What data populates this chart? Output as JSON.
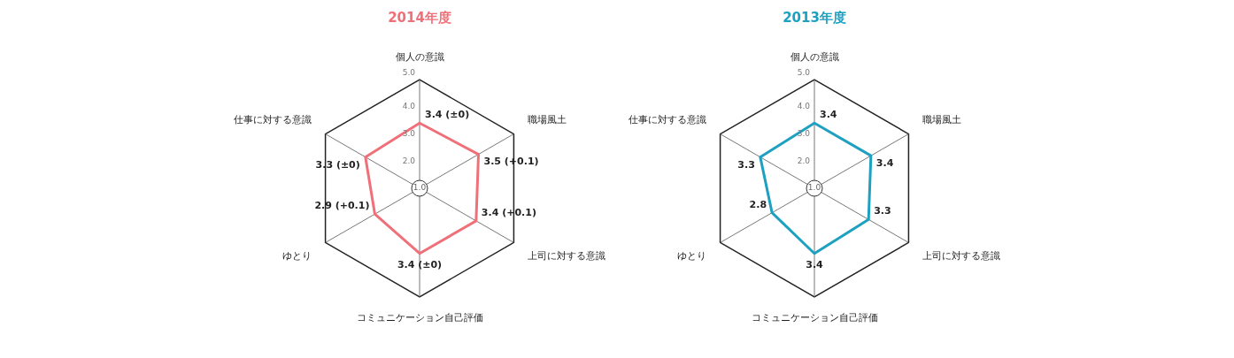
{
  "chart_data": [
    {
      "type": "radar",
      "title": "2014年度",
      "categories": [
        "個人の意識",
        "職場風土",
        "上司に対する意識",
        "コミュニケーション自己評価",
        "ゆとり",
        "仕事に対する意識"
      ],
      "series": [
        {
          "color": "#f0707a",
          "values": [
            3.4,
            3.5,
            3.4,
            3.4,
            2.9,
            3.3
          ],
          "value_labels": [
            "3.4 (±0)",
            "3.5 (+0.1)",
            "3.4 (+0.1)",
            "3.4 (±0)",
            "2.9 (+0.1)",
            "3.3 (±0)"
          ]
        }
      ],
      "ylim": [
        1,
        5
      ],
      "yticks": [
        {
          "value": 1,
          "label": "1.0"
        },
        {
          "value": 2,
          "label": "2.0"
        },
        {
          "value": 3,
          "label": "3.0"
        },
        {
          "value": 4,
          "label": "4.0"
        },
        {
          "value": 5,
          "label": "5.0"
        }
      ],
      "grid": false,
      "legend": false,
      "marker": "none"
    },
    {
      "type": "radar",
      "title": "2013年度",
      "categories": [
        "個人の意識",
        "職場風土",
        "上司に対する意識",
        "コミュニケーション自己評価",
        "ゆとり",
        "仕事に対する意識"
      ],
      "series": [
        {
          "color": "#1ea0c0",
          "values": [
            3.4,
            3.4,
            3.3,
            3.4,
            2.8,
            3.3
          ]
        }
      ],
      "ylim": [
        1,
        5
      ],
      "yticks": [
        {
          "value": 1,
          "label": "1.0"
        },
        {
          "value": 2,
          "label": "2.0"
        },
        {
          "value": 3,
          "label": "3.0"
        },
        {
          "value": 4,
          "label": "4.0"
        },
        {
          "value": 5,
          "label": "5.0"
        }
      ],
      "grid": false,
      "legend": false,
      "marker": "none",
      "data_labels": true
    }
  ]
}
